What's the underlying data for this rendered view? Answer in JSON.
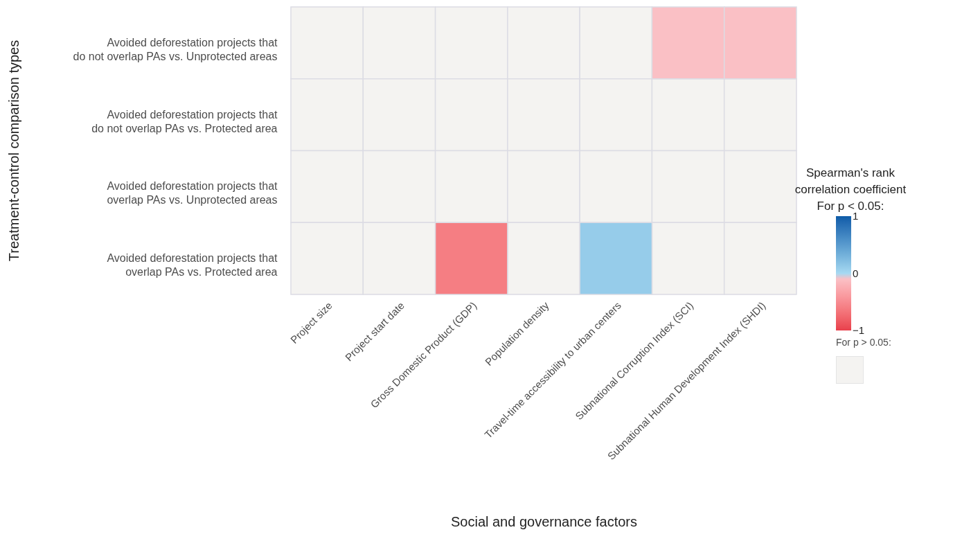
{
  "chart_data": {
    "type": "heatmap",
    "xlabel": "Social and governance factors",
    "ylabel": "Treatment-control comparison types",
    "legend_title": "Spearman's rank\ncorrelation coefficient",
    "categories": [
      "Project size",
      "Project start date",
      "Gross Domestic Product (GDP)",
      "Population density",
      "Travel-time accessibility to urban centers",
      "Subnational Corruption Index (SCI)",
      "Subnational Human Development Index (SHDI)"
    ],
    "y_categories": [
      "Avoided deforestation projects that\ndo not overlap PAs vs. Unprotected areas",
      "Avoided deforestation projects that\ndo not overlap PAs vs. Protected area",
      "Avoided deforestation projects that\noverlap PAs vs. Unprotected areas",
      "Avoided deforestation projects that\noverlap PAs vs. Protected area"
    ],
    "cells": [
      [
        null,
        null,
        null,
        null,
        null,
        -0.1,
        -0.1
      ],
      [
        null,
        null,
        null,
        null,
        null,
        null,
        null
      ],
      [
        null,
        null,
        null,
        null,
        null,
        null,
        null
      ],
      [
        null,
        null,
        -0.6,
        null,
        0.1,
        null,
        null
      ]
    ],
    "clim": [
      -1,
      1
    ],
    "cticks": [
      -1,
      0,
      1
    ],
    "annotations": [
      "For p < 0.05:",
      "For p > 0.05:"
    ]
  }
}
